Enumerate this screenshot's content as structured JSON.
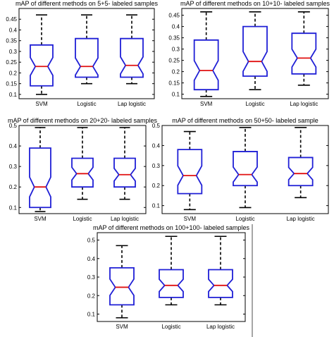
{
  "colors": {
    "box": "#1f1fd6",
    "median": "#e01010",
    "whisker": "#000000",
    "frame": "#000000",
    "divider": "#888888"
  },
  "chart_data": [
    {
      "type": "boxplot",
      "title": "mAP of different methods on 5+5- labeled samples",
      "categories": [
        "SVM",
        "Logistic",
        "Lap logistic"
      ],
      "ylim": [
        0.08,
        0.5
      ],
      "yticks": [
        "0.1",
        "0.15",
        "0.2",
        "0.25",
        "0.3",
        "0.35",
        "0.4",
        "0.45"
      ],
      "boxes": [
        {
          "min": 0.1,
          "q1": 0.14,
          "median": 0.23,
          "q3": 0.33,
          "max": 0.47
        },
        {
          "min": 0.15,
          "q1": 0.18,
          "median": 0.23,
          "q3": 0.36,
          "max": 0.47
        },
        {
          "min": 0.15,
          "q1": 0.18,
          "median": 0.235,
          "q3": 0.36,
          "max": 0.47
        }
      ]
    },
    {
      "type": "boxplot",
      "title": "mAP of different methods on 10+10- labeled samples",
      "categories": [
        "SVM",
        "Logistic",
        "Lap logistic"
      ],
      "ylim": [
        0.08,
        0.48
      ],
      "yticks": [
        "0.1",
        "0.15",
        "0.2",
        "0.25",
        "0.3",
        "0.35",
        "0.4",
        "0.45"
      ],
      "boxes": [
        {
          "min": 0.09,
          "q1": 0.12,
          "median": 0.205,
          "q3": 0.34,
          "max": 0.465
        },
        {
          "min": 0.12,
          "q1": 0.18,
          "median": 0.245,
          "q3": 0.4,
          "max": 0.465
        },
        {
          "min": 0.14,
          "q1": 0.19,
          "median": 0.26,
          "q3": 0.37,
          "max": 0.465
        }
      ]
    },
    {
      "type": "boxplot",
      "title": "mAP of different methods on 20+20- labeled samples",
      "categories": [
        "SVM",
        "Logistic",
        "Lap logistic"
      ],
      "ylim": [
        0.07,
        0.5
      ],
      "yticks": [
        "0.1",
        "0.2",
        "0.3",
        "0.4",
        "0.5"
      ],
      "boxes": [
        {
          "min": 0.08,
          "q1": 0.1,
          "median": 0.2,
          "q3": 0.39,
          "max": 0.49
        },
        {
          "min": 0.14,
          "q1": 0.2,
          "median": 0.265,
          "q3": 0.34,
          "max": 0.49
        },
        {
          "min": 0.14,
          "q1": 0.2,
          "median": 0.26,
          "q3": 0.34,
          "max": 0.49
        }
      ]
    },
    {
      "type": "boxplot",
      "title": "mAP of different methods on 50+50- labeled sample",
      "categories": [
        "SVM",
        "Logistic",
        "Lap logistic"
      ],
      "ylim": [
        0.06,
        0.5
      ],
      "yticks": [
        "0.1",
        "0.2",
        "0.3",
        "0.4",
        "0.5"
      ],
      "boxes": [
        {
          "min": 0.08,
          "q1": 0.16,
          "median": 0.25,
          "q3": 0.38,
          "max": 0.47
        },
        {
          "min": 0.09,
          "q1": 0.2,
          "median": 0.255,
          "q3": 0.37,
          "max": 0.49
        },
        {
          "min": 0.14,
          "q1": 0.2,
          "median": 0.26,
          "q3": 0.34,
          "max": 0.49
        }
      ]
    },
    {
      "type": "boxplot",
      "title": "mAP of different methods on 100+100- labeled samples",
      "categories": [
        "SVM",
        "Logistic",
        "Lap logistic"
      ],
      "ylim": [
        0.06,
        0.54
      ],
      "yticks": [
        "0.1",
        "0.2",
        "0.3",
        "0.4",
        "0.5"
      ],
      "boxes": [
        {
          "min": 0.08,
          "q1": 0.15,
          "median": 0.245,
          "q3": 0.35,
          "max": 0.47
        },
        {
          "min": 0.15,
          "q1": 0.19,
          "median": 0.255,
          "q3": 0.34,
          "max": 0.52
        },
        {
          "min": 0.15,
          "q1": 0.19,
          "median": 0.255,
          "q3": 0.34,
          "max": 0.52
        }
      ]
    }
  ]
}
